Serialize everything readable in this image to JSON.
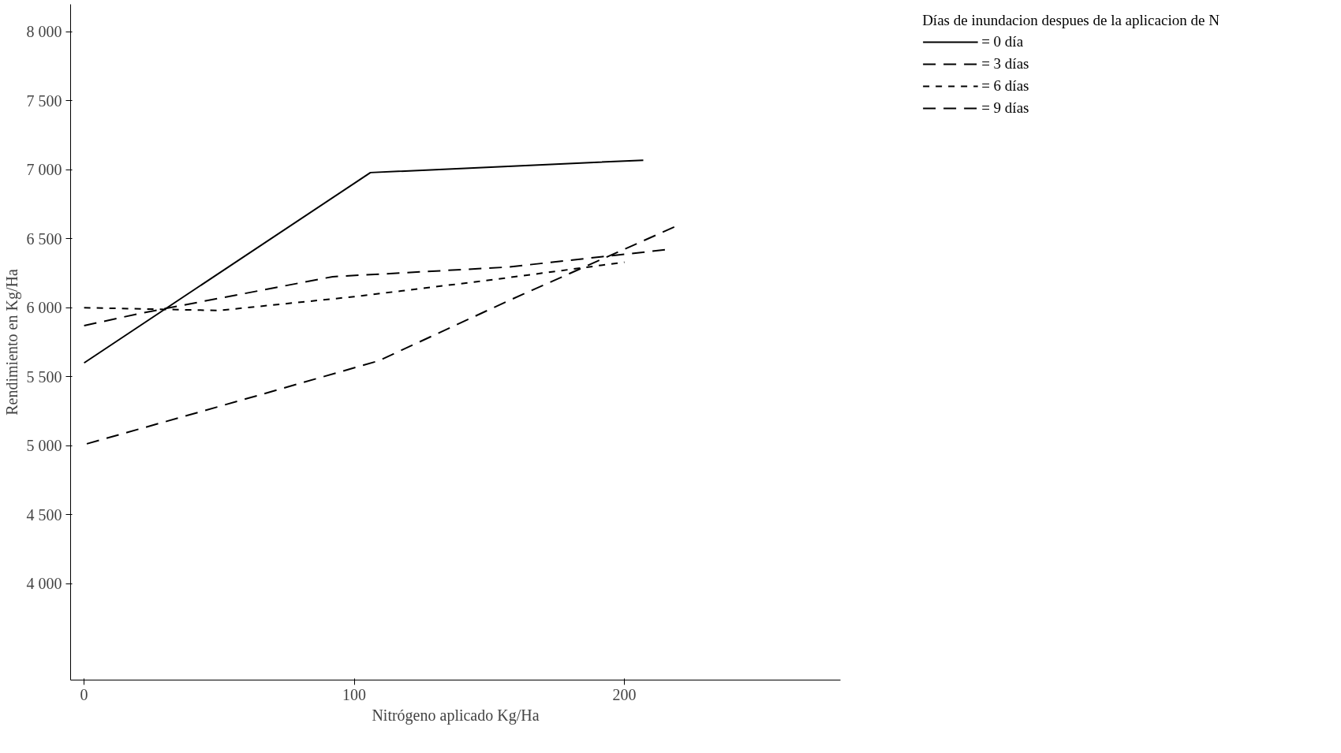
{
  "chart_data": {
    "type": "line",
    "xlabel": "Nitrógeno aplicado Kg/Ha",
    "ylabel": "Rendimiento en Kg/Ha",
    "legend_title": "Días de inundacion despues de la aplicacion de N",
    "xlim": [
      -5,
      280
    ],
    "ylim": [
      3300,
      8200
    ],
    "xticks": [
      0,
      100,
      200
    ],
    "yticks": [
      {
        "value": 4000,
        "label": "4 000"
      },
      {
        "value": 4500,
        "label": "4 500"
      },
      {
        "value": 5000,
        "label": "5 000"
      },
      {
        "value": 5500,
        "label": "5 500"
      },
      {
        "value": 6000,
        "label": "6 000"
      },
      {
        "value": 6500,
        "label": "6 500"
      },
      {
        "value": 7000,
        "label": "7 000"
      },
      {
        "value": 7500,
        "label": "7 500"
      },
      {
        "value": 8000,
        "label": "8 000"
      }
    ],
    "grid": false,
    "legend": "top right",
    "marker": "none",
    "series": [
      {
        "name": "= 0 día",
        "color": "#000000",
        "line_style": "solid",
        "x": [
          0,
          106,
          207
        ],
        "values": [
          5600,
          6980,
          7070
        ]
      },
      {
        "name": "= 3 días",
        "color": "#000000",
        "line_style": "dashed",
        "x": [
          0,
          21,
          92,
          157,
          215
        ],
        "values": [
          5870,
          5960,
          6225,
          6295,
          6420
        ]
      },
      {
        "name": "= 6 días",
        "color": "#000000",
        "line_style": "dotted",
        "x": [
          0,
          50,
          100,
          150,
          200
        ],
        "values": [
          6000,
          5980,
          6080,
          6200,
          6330
        ]
      },
      {
        "name": "= 9 días",
        "color": "#000000",
        "line_style": "dashed",
        "x": [
          1,
          61,
          109,
          157,
          219
        ],
        "values": [
          5013,
          5345,
          5615,
          6050,
          6590
        ]
      }
    ]
  }
}
